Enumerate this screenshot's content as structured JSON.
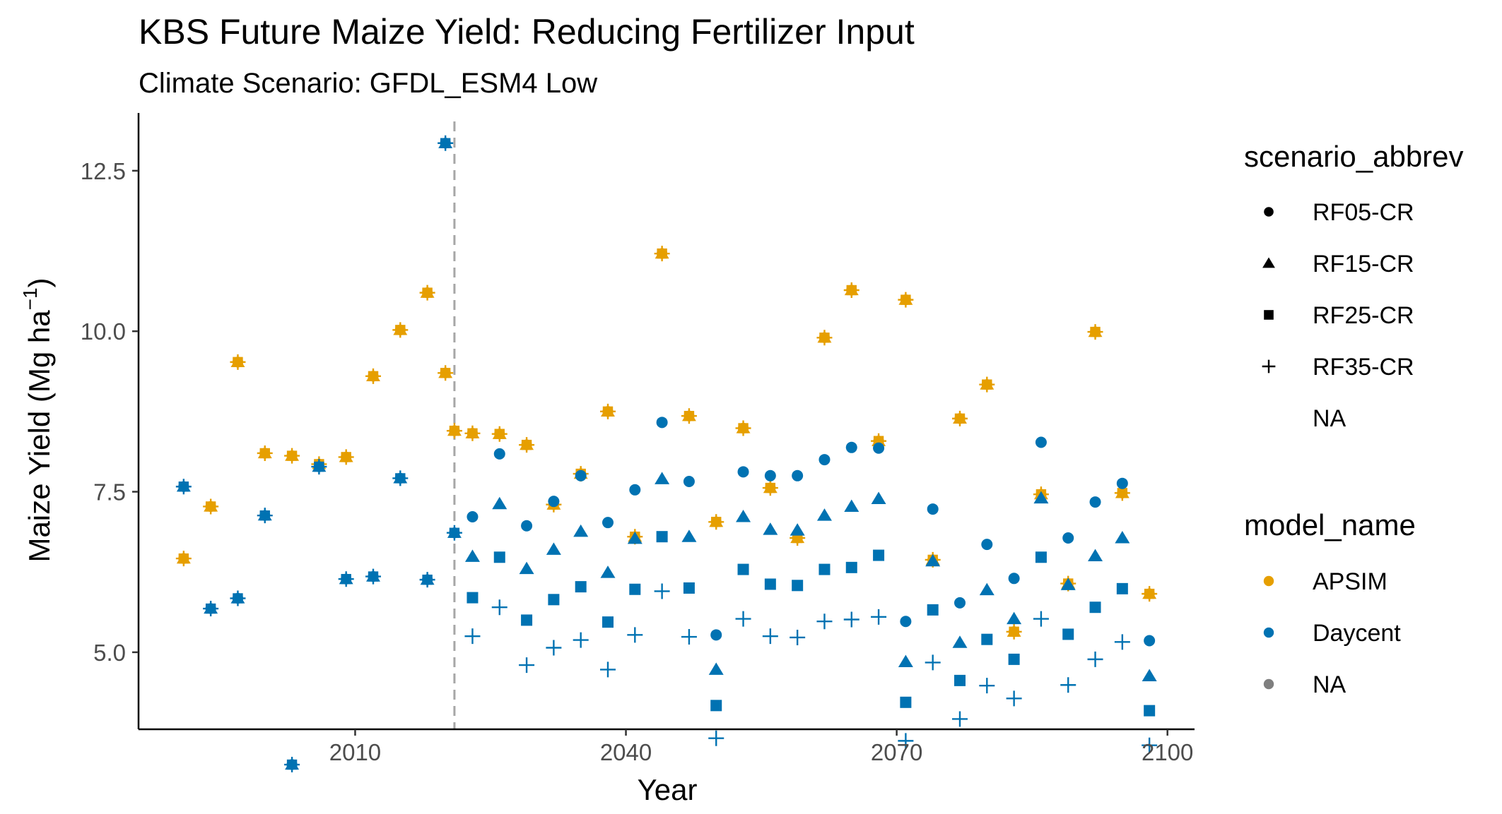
{
  "chart_data": {
    "type": "scatter",
    "title": "KBS Future Maize Yield: Reducing Fertilizer Input",
    "subtitle": "Climate Scenario: GFDL_ESM4 Low",
    "xlabel": "Year",
    "ylabel_main": "Maize Yield (Mg ha",
    "ylabel_sup": "−1",
    "ylabel_close": ")",
    "xlim": [
      1986,
      2103
    ],
    "ylim": [
      3.8,
      13.4
    ],
    "xticks": [
      2010,
      2040,
      2070,
      2100
    ],
    "xtick_labels": [
      "2010",
      "2040",
      "2070",
      "2100"
    ],
    "yticks": [
      5.0,
      7.5,
      10.0,
      12.5
    ],
    "ytick_labels": [
      "5.0",
      "7.5",
      "10.0",
      "12.5"
    ],
    "grid": false,
    "vline": {
      "x": 2021,
      "style": "dashed",
      "color": "#a6a6a6"
    },
    "colors": {
      "APSIM": "#E69F00",
      "Daycent": "#0072B2",
      "NA": "#7f7f7f"
    },
    "legend_position": "right",
    "legend_scenario": {
      "title": "scenario_abbrev",
      "entries": [
        {
          "label": "RF05-CR",
          "shape": "circle"
        },
        {
          "label": "RF15-CR",
          "shape": "triangle"
        },
        {
          "label": "RF25-CR",
          "shape": "square"
        },
        {
          "label": "RF35-CR",
          "shape": "plus"
        },
        {
          "label": "NA",
          "shape": "none"
        }
      ]
    },
    "legend_model": {
      "title": "model_name",
      "entries": [
        {
          "label": "APSIM",
          "color": "#E69F00"
        },
        {
          "label": "Daycent",
          "color": "#0072B2"
        },
        {
          "label": "NA",
          "color": "#7f7f7f"
        }
      ]
    },
    "historical": {
      "years": [
        1990,
        1993,
        1996,
        1999,
        2002,
        2005,
        2008,
        2011,
        2014,
        2017,
        2020
      ],
      "apsim": [
        6.46,
        7.27,
        9.52,
        8.1,
        8.06,
        7.93,
        8.04,
        9.3,
        10.02,
        10.6,
        8.45,
        9.35
      ],
      "apsim_years": [
        1991,
        1994,
        1997,
        2000,
        2003,
        2006,
        2009,
        2012,
        2015,
        2018,
        2021,
        2020
      ],
      "daycent": [
        7.58,
        5.68,
        5.84,
        7.13,
        3.25,
        7.89,
        6.14,
        6.18,
        7.71,
        6.13,
        6.86,
        12.93
      ],
      "daycent_years": [
        1991,
        1994,
        1997,
        2000,
        2003,
        2006,
        2009,
        2012,
        2015,
        2018,
        2021,
        2020
      ]
    },
    "future_years": [
      2023,
      2026,
      2029,
      2032,
      2035,
      2038,
      2041,
      2044,
      2047,
      2050,
      2053,
      2056,
      2059,
      2062,
      2065,
      2068,
      2071,
      2074,
      2077,
      2080,
      2083,
      2086,
      2089,
      2092,
      2095,
      2098
    ],
    "series": [
      {
        "name": "APSIM",
        "shape": "all",
        "color": "#E69F00",
        "values": [
          8.41,
          8.4,
          8.23,
          7.3,
          7.78,
          8.75,
          6.8,
          11.21,
          8.68,
          7.03,
          8.49,
          7.56,
          6.78,
          9.9,
          10.64,
          8.29,
          10.49,
          6.44,
          8.64,
          9.17,
          5.32,
          7.46,
          6.07,
          9.99,
          7.48,
          5.91
        ]
      },
      {
        "name": "RF05-CR",
        "shape": "circle",
        "color": "#0072B2",
        "values": [
          7.11,
          8.09,
          6.97,
          7.35,
          7.75,
          7.02,
          7.53,
          8.58,
          7.66,
          5.27,
          7.81,
          7.75,
          7.75,
          8.0,
          8.19,
          8.18,
          5.48,
          7.23,
          5.77,
          6.68,
          6.15,
          8.27,
          6.78,
          7.34,
          7.63,
          5.18
        ]
      },
      {
        "name": "RF15-CR",
        "shape": "triangle",
        "color": "#0072B2",
        "values": [
          6.49,
          7.31,
          6.3,
          6.6,
          6.88,
          6.24,
          6.77,
          7.7,
          6.8,
          4.73,
          7.11,
          6.91,
          6.9,
          7.13,
          7.27,
          7.39,
          4.85,
          6.42,
          5.15,
          5.97,
          5.52,
          7.4,
          6.05,
          6.5,
          6.78,
          4.63
        ]
      },
      {
        "name": "RF25-CR",
        "shape": "square",
        "color": "#0072B2",
        "values": [
          5.85,
          6.48,
          5.5,
          5.82,
          6.02,
          5.47,
          5.98,
          6.8,
          6.0,
          4.17,
          6.29,
          6.06,
          6.04,
          6.29,
          6.32,
          6.51,
          4.22,
          5.66,
          4.56,
          5.2,
          4.89,
          6.48,
          5.28,
          5.7,
          5.99,
          4.09
        ]
      },
      {
        "name": "RF35-CR",
        "shape": "plus",
        "color": "#0072B2",
        "values": [
          5.25,
          5.7,
          4.8,
          5.07,
          5.19,
          4.73,
          5.27,
          5.95,
          5.24,
          3.66,
          5.52,
          5.25,
          5.23,
          5.48,
          5.51,
          5.55,
          3.62,
          4.84,
          3.96,
          4.48,
          4.28,
          5.52,
          4.49,
          4.89,
          5.16,
          3.55
        ]
      }
    ]
  }
}
